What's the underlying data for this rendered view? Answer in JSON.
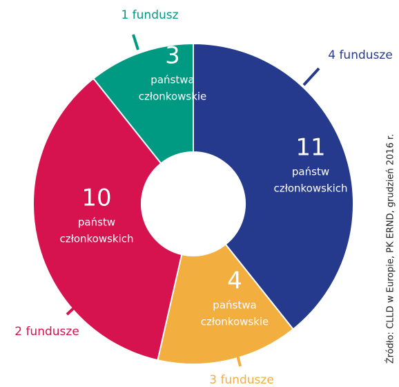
{
  "chart_data": {
    "type": "donut",
    "categories": [
      "4 fundusze",
      "3 fundusze",
      "2 fundusze",
      "1 fundusz"
    ],
    "values": [
      11,
      4,
      10,
      3
    ],
    "colors": [
      "#253a8c",
      "#f2ae3f",
      "#d6124f",
      "#009a82"
    ],
    "sublabels": [
      [
        "państw",
        "członkowskich"
      ],
      [
        "państwa",
        "członkowskie"
      ],
      [
        "państw",
        "członkowskich"
      ],
      [
        "państwa",
        "członkowskie"
      ]
    ],
    "source": "Źródło: CLLD w Europie, PK ERND, grudzień 2016 r."
  }
}
